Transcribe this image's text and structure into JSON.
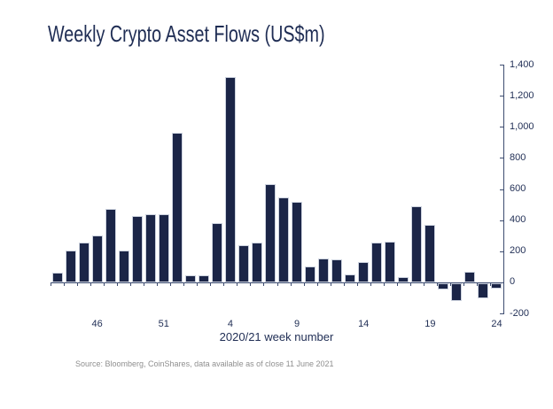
{
  "page": {
    "title": "Weekly Crypto Asset Flows (US$m)",
    "source_note": "Source: Bloomberg, CoinShares, data available as of close 11 June 2021"
  },
  "colors": {
    "bar_fill": "#1b2547",
    "bar_border": "#ccd2de",
    "text_navy": "#1f2d54",
    "axis_line": "#3d4c70",
    "source_gray": "#8f8f8f",
    "background": "#ffffff"
  },
  "chart_data": {
    "type": "bar",
    "title": "Weekly Crypto Asset Flows (US$m)",
    "xlabel": "2020/21 week number",
    "ylabel": "",
    "ylim": [
      -200,
      1400
    ],
    "y_tick_step": 200,
    "y_ticks": [
      "1,400",
      "1,200",
      "1,000",
      "800",
      "600",
      "400",
      "200",
      "0",
      "-200"
    ],
    "y_axis_position": "right",
    "grid": false,
    "legend": false,
    "categories": [
      "43",
      "44",
      "45",
      "46",
      "47",
      "48",
      "49",
      "50",
      "51",
      "52",
      "1",
      "2",
      "3",
      "4",
      "5",
      "6",
      "7",
      "8",
      "9",
      "10",
      "11",
      "12",
      "13",
      "14",
      "15",
      "16",
      "17",
      "18",
      "19",
      "20",
      "21",
      "22",
      "23",
      "24"
    ],
    "values": [
      60,
      205,
      257,
      300,
      470,
      207,
      425,
      438,
      440,
      960,
      45,
      45,
      380,
      1320,
      240,
      257,
      630,
      548,
      515,
      100,
      155,
      150,
      48,
      130,
      258,
      264,
      35,
      490,
      372,
      -40,
      -115,
      70,
      -98,
      -35
    ],
    "x_tick_labels": [
      "46",
      "51",
      "4",
      "9",
      "14",
      "19",
      "24"
    ],
    "x_tick_indices": [
      3,
      8,
      13,
      18,
      23,
      28,
      33
    ]
  }
}
